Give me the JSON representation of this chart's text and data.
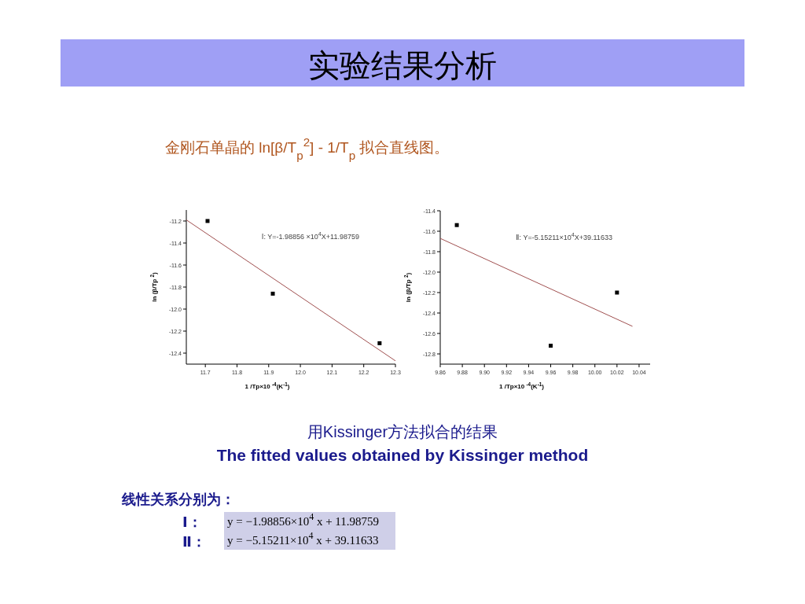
{
  "chart_data": [
    {
      "type": "other",
      "title": "实验结果分析",
      "subtitle": "金刚石单晶的 ln[β/T$_{p}$$^{2}$] - 1/T$_{p}$ 拟合直线图。"
    },
    {
      "type": "scatter",
      "xlabel": "1 /Tp×10 $^{-4}$(K$^{-1}$)",
      "ylabel": "ln (β/Tp $^{2}$)",
      "xlim": [
        11.64,
        12.3
      ],
      "ylim": [
        -12.5,
        -11.1
      ],
      "xticks": [
        11.7,
        11.8,
        11.9,
        {
          "value": 12,
          "label": "12.0"
        },
        12.1,
        12.2,
        12.3
      ],
      "yticks": [
        -11.2,
        -11.4,
        -11.6,
        -11.8,
        {
          "value": -12,
          "label": "-12.0"
        },
        -12.2,
        -12.4
      ],
      "series": [
        {
          "type": "scatter",
          "marker": "square",
          "color": "#000000",
          "x": [
            11.707,
            11.913,
            12.25
          ],
          "values": [
            -11.2,
            -11.86,
            -12.31
          ]
        },
        {
          "type": "line",
          "marker": "none",
          "color": "#a05050",
          "x": [
            11.64,
            12.3
          ],
          "values": [
            -11.19,
            -12.47
          ]
        }
      ],
      "annotations": [
        "Ⅰ: Y=-1.98856 ×10$^{4}$X+11.98759"
      ]
    },
    {
      "type": "scatter",
      "xlabel": "1 /Tp×10 $^{-4}$(K$^{-1}$)",
      "ylabel": "ln (β/Tp $^{2}$)",
      "xlim": [
        9.86,
        10.05
      ],
      "ylim": [
        -12.9,
        -11.4
      ],
      "xticks": [
        9.86,
        9.88,
        {
          "value": 9.9,
          "label": "9.90"
        },
        9.92,
        9.94,
        9.96,
        9.98,
        {
          "value": 10,
          "label": "10.00"
        },
        10.02,
        10.04
      ],
      "yticks": [
        -11.4,
        -11.6,
        -11.8,
        {
          "value": -12,
          "label": "-12.0"
        },
        -12.2,
        -12.4,
        -12.6,
        -12.8
      ],
      "series": [
        {
          "type": "scatter",
          "marker": "square",
          "color": "#000000",
          "x": [
            9.875,
            9.96,
            10.02
          ],
          "values": [
            -11.54,
            -12.72,
            -12.2
          ]
        },
        {
          "type": "line",
          "marker": "none",
          "color": "#a05050",
          "x": [
            9.86,
            10.034
          ],
          "values": [
            -11.67,
            -12.53
          ]
        }
      ],
      "annotations": [
        "Ⅱ: Y=-5.15211×10$^{4}$X+39.11633"
      ]
    },
    {
      "type": "other",
      "annotations": [
        "用Kissinger方法拟合的结果",
        "The fitted values obtained by Kissinger method",
        "线性关系分别为：",
        "Ⅰ：",
        "y = −1.98856×10$^{4}$ x + 11.98759",
        "Ⅱ：",
        "y = −5.15211×10$^{4}$ x + 39.11633"
      ]
    }
  ]
}
